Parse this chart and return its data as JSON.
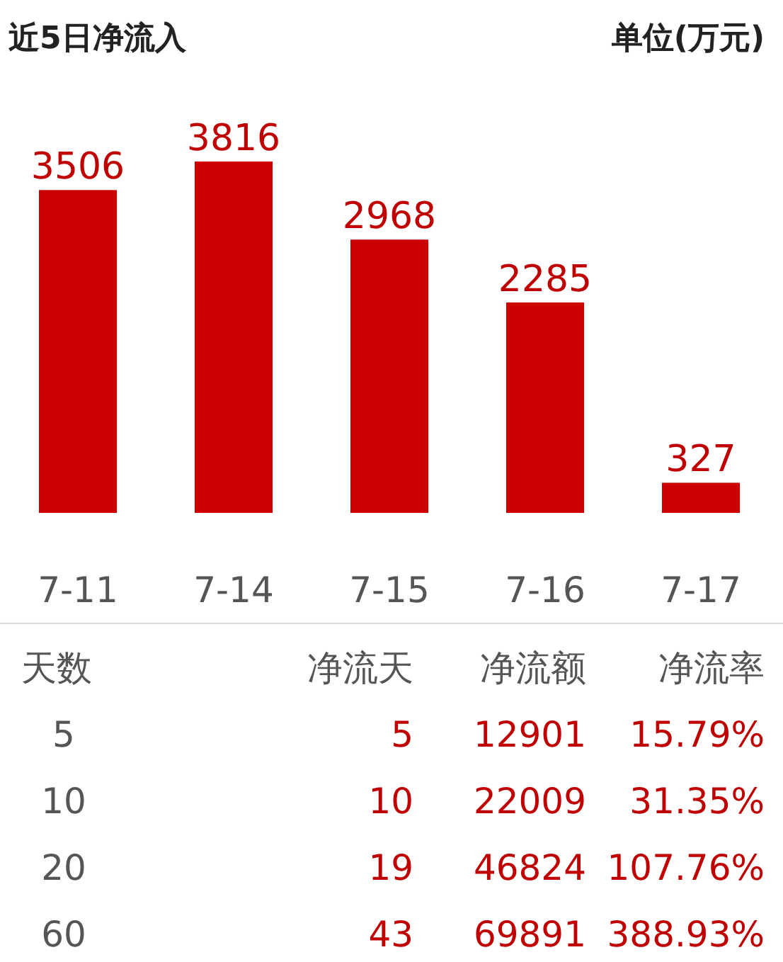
{
  "chart_data": [
    {
      "type": "bar",
      "title": "近5日净流入",
      "ylabel": "单位(万元)",
      "categories": [
        "7-11",
        "7-14",
        "7-15",
        "7-16",
        "7-17"
      ],
      "values": [
        3506,
        3816,
        2968,
        2285,
        327
      ],
      "color": "#cc0000",
      "data_labels": true
    },
    {
      "type": "other",
      "categories": [
        "天数",
        "净流天",
        "净流额",
        "净流率"
      ],
      "cell_labels": [
        [
          "5",
          "5",
          "12901",
          "15.79%"
        ],
        [
          "10",
          "10",
          "22009",
          "31.35%"
        ],
        [
          "20",
          "19",
          "46824",
          "107.76%"
        ],
        [
          "60",
          "43",
          "69891",
          "388.93%"
        ]
      ]
    }
  ]
}
